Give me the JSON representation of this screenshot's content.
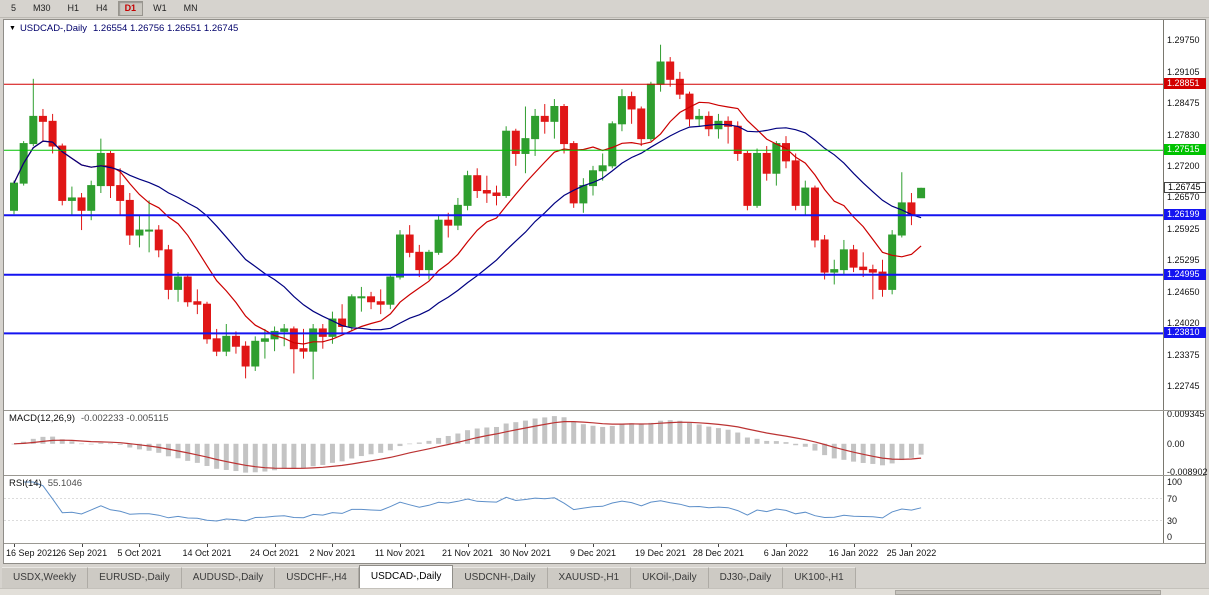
{
  "toolbar": {
    "timeframes": [
      {
        "label": "5",
        "active": false
      },
      {
        "label": "M30",
        "active": false
      },
      {
        "label": "H1",
        "active": false
      },
      {
        "label": "H4",
        "active": false
      },
      {
        "label": "D1",
        "active": true
      },
      {
        "label": "W1",
        "active": false
      },
      {
        "label": "MN",
        "active": false
      }
    ]
  },
  "chart": {
    "menu_icon": "▼",
    "title": "USDCAD-,Daily",
    "ohlc_text": "1.26554 1.26756 1.26551 1.26745"
  },
  "chart_data": {
    "type": "candlestick",
    "symbol": "USDCAD-",
    "timeframe": "Daily",
    "last_ohlc": {
      "open": "1.26554",
      "high": "1.26756",
      "low": "1.26551",
      "close": "1.26745"
    },
    "colors": {
      "bull": "#2f9e2f",
      "bear": "#e01616",
      "ma_fast": "#cc0000",
      "ma_slow": "#000080",
      "macd_hist": "#c4c4c4",
      "macd_signal": "#bb3333",
      "rsi_line": "#5d8fc9"
    },
    "price_axis": {
      "min": 1.2226,
      "max": 1.3015,
      "ticks": [
        "1.29750",
        "1.29105",
        "1.28475",
        "1.27830",
        "1.27200",
        "1.26570",
        "1.25925",
        "1.25295",
        "1.24650",
        "1.24020",
        "1.23375",
        "1.22745"
      ]
    },
    "hlines": [
      {
        "label": "1.28851",
        "price": 1.28851,
        "color": "#d20000",
        "width": 1
      },
      {
        "label": "1.27515",
        "price": 1.27515,
        "color": "#00c200",
        "width": 1
      },
      {
        "label": "1.26199",
        "price": 1.26199,
        "color": "#1414f0",
        "width": 2
      },
      {
        "label": "1.24995",
        "price": 1.24995,
        "color": "#1414f0",
        "width": 2
      },
      {
        "label": "1.23810",
        "price": 1.2381,
        "color": "#1414f0",
        "width": 2
      }
    ],
    "current_price": {
      "label": "1.26745",
      "price": 1.26745
    },
    "moving_averages": [
      {
        "period": 10,
        "color": "#cc0000"
      },
      {
        "period": 20,
        "color": "#000080"
      }
    ],
    "macd": {
      "label": "MACD(12,26,9)",
      "values_text": "-0.002233 -0.005115",
      "fast": 12,
      "slow": 26,
      "signal": 9,
      "axis_ticks": [
        "0.009345",
        "0.00",
        "-0.008902"
      ],
      "range": [
        -0.0099,
        0.0104
      ]
    },
    "rsi": {
      "label": "RSI(14)",
      "value_text": "55.1046",
      "period": 14,
      "levels": [
        70,
        30
      ],
      "axis_ticks": [
        "100",
        "70",
        "30",
        "0"
      ]
    },
    "x_axis": {
      "labels": [
        {
          "text": "16 Sep 2021",
          "bar": 0
        },
        {
          "text": "26 Sep 2021",
          "bar": 7
        },
        {
          "text": "5 Oct 2021",
          "bar": 13
        },
        {
          "text": "14 Oct 2021",
          "bar": 20
        },
        {
          "text": "24 Oct 2021",
          "bar": 27
        },
        {
          "text": "2 Nov 2021",
          "bar": 33
        },
        {
          "text": "11 Nov 2021",
          "bar": 40
        },
        {
          "text": "21 Nov 2021",
          "bar": 47
        },
        {
          "text": "30 Nov 2021",
          "bar": 53
        },
        {
          "text": "9 Dec 2021",
          "bar": 60
        },
        {
          "text": "19 Dec 2021",
          "bar": 67
        },
        {
          "text": "28 Dec 2021",
          "bar": 73
        },
        {
          "text": "6 Jan 2022",
          "bar": 80
        },
        {
          "text": "16 Jan 2022",
          "bar": 87
        },
        {
          "text": "25 Jan 2022",
          "bar": 93
        }
      ]
    },
    "candles": [
      [
        1.263,
        1.269,
        1.2622,
        1.2685
      ],
      [
        1.2685,
        1.277,
        1.268,
        1.2765
      ],
      [
        1.2765,
        1.2896,
        1.276,
        1.282
      ],
      [
        1.282,
        1.2835,
        1.277,
        1.281
      ],
      [
        1.281,
        1.2825,
        1.2745,
        1.276
      ],
      [
        1.276,
        1.2765,
        1.264,
        1.265
      ],
      [
        1.265,
        1.2678,
        1.262,
        1.2655
      ],
      [
        1.2655,
        1.2665,
        1.259,
        1.263
      ],
      [
        1.263,
        1.269,
        1.261,
        1.268
      ],
      [
        1.268,
        1.2775,
        1.2665,
        1.2745
      ],
      [
        1.2745,
        1.275,
        1.2655,
        1.268
      ],
      [
        1.268,
        1.2715,
        1.262,
        1.265
      ],
      [
        1.265,
        1.2665,
        1.256,
        1.258
      ],
      [
        1.258,
        1.262,
        1.2555,
        1.259
      ],
      [
        1.259,
        1.265,
        1.2545,
        1.259
      ],
      [
        1.259,
        1.26,
        1.2535,
        1.255
      ],
      [
        1.255,
        1.256,
        1.245,
        1.247
      ],
      [
        1.247,
        1.2505,
        1.2445,
        1.2495
      ],
      [
        1.2495,
        1.25,
        1.2435,
        1.2445
      ],
      [
        1.2445,
        1.247,
        1.242,
        1.244
      ],
      [
        1.244,
        1.2445,
        1.236,
        1.237
      ],
      [
        1.237,
        1.239,
        1.2335,
        1.2345
      ],
      [
        1.2345,
        1.24,
        1.2335,
        1.2375
      ],
      [
        1.2375,
        1.2385,
        1.234,
        1.2355
      ],
      [
        1.2355,
        1.2365,
        1.229,
        1.2315
      ],
      [
        1.2315,
        1.2375,
        1.2305,
        1.2365
      ],
      [
        1.2365,
        1.239,
        1.233,
        1.237
      ],
      [
        1.237,
        1.2395,
        1.2345,
        1.2385
      ],
      [
        1.2385,
        1.24,
        1.2355,
        1.239
      ],
      [
        1.239,
        1.2395,
        1.23,
        1.235
      ],
      [
        1.235,
        1.239,
        1.233,
        1.2345
      ],
      [
        1.2345,
        1.24,
        1.2288,
        1.239
      ],
      [
        1.239,
        1.24,
        1.235,
        1.2375
      ],
      [
        1.2375,
        1.2425,
        1.236,
        1.241
      ],
      [
        1.241,
        1.244,
        1.238,
        1.2395
      ],
      [
        1.2395,
        1.246,
        1.2385,
        1.2455
      ],
      [
        1.2455,
        1.2475,
        1.2425,
        1.2455
      ],
      [
        1.2455,
        1.2465,
        1.243,
        1.2445
      ],
      [
        1.2445,
        1.247,
        1.242,
        1.244
      ],
      [
        1.244,
        1.25,
        1.243,
        1.2495
      ],
      [
        1.2495,
        1.259,
        1.249,
        1.258
      ],
      [
        1.258,
        1.26,
        1.2535,
        1.2545
      ],
      [
        1.2545,
        1.256,
        1.2495,
        1.251
      ],
      [
        1.251,
        1.255,
        1.249,
        1.2545
      ],
      [
        1.2545,
        1.262,
        1.254,
        1.261
      ],
      [
        1.261,
        1.2625,
        1.2575,
        1.26
      ],
      [
        1.26,
        1.2655,
        1.259,
        1.264
      ],
      [
        1.264,
        1.271,
        1.263,
        1.27
      ],
      [
        1.27,
        1.2715,
        1.2655,
        1.267
      ],
      [
        1.267,
        1.27,
        1.2645,
        1.2665
      ],
      [
        1.2665,
        1.268,
        1.264,
        1.266
      ],
      [
        1.266,
        1.28,
        1.2655,
        1.279
      ],
      [
        1.279,
        1.2795,
        1.272,
        1.2745
      ],
      [
        1.2745,
        1.284,
        1.2705,
        1.2775
      ],
      [
        1.2775,
        1.2835,
        1.274,
        1.282
      ],
      [
        1.282,
        1.2845,
        1.2785,
        1.281
      ],
      [
        1.281,
        1.2855,
        1.2775,
        1.284
      ],
      [
        1.284,
        1.2845,
        1.2745,
        1.2765
      ],
      [
        1.2765,
        1.277,
        1.2635,
        1.2645
      ],
      [
        1.2645,
        1.2695,
        1.2625,
        1.268
      ],
      [
        1.268,
        1.272,
        1.266,
        1.271
      ],
      [
        1.271,
        1.2745,
        1.269,
        1.272
      ],
      [
        1.272,
        1.281,
        1.2715,
        1.2805
      ],
      [
        1.2805,
        1.2875,
        1.279,
        1.286
      ],
      [
        1.286,
        1.287,
        1.2805,
        1.2835
      ],
      [
        1.2835,
        1.284,
        1.276,
        1.2775
      ],
      [
        1.2775,
        1.289,
        1.277,
        1.2885
      ],
      [
        1.2885,
        1.2965,
        1.287,
        1.293
      ],
      [
        1.293,
        1.294,
        1.288,
        1.2895
      ],
      [
        1.2895,
        1.291,
        1.2855,
        1.2865
      ],
      [
        1.2865,
        1.287,
        1.28,
        1.2815
      ],
      [
        1.2815,
        1.2835,
        1.28,
        1.282
      ],
      [
        1.282,
        1.283,
        1.278,
        1.2795
      ],
      [
        1.2795,
        1.2825,
        1.2775,
        1.281
      ],
      [
        1.281,
        1.282,
        1.2765,
        1.28
      ],
      [
        1.28,
        1.281,
        1.273,
        1.2745
      ],
      [
        1.2745,
        1.275,
        1.263,
        1.264
      ],
      [
        1.264,
        1.2755,
        1.2635,
        1.2745
      ],
      [
        1.2745,
        1.276,
        1.269,
        1.2705
      ],
      [
        1.2705,
        1.277,
        1.268,
        1.2765
      ],
      [
        1.2765,
        1.278,
        1.2715,
        1.273
      ],
      [
        1.273,
        1.2745,
        1.263,
        1.264
      ],
      [
        1.264,
        1.269,
        1.262,
        1.2675
      ],
      [
        1.2675,
        1.268,
        1.2555,
        1.257
      ],
      [
        1.257,
        1.258,
        1.249,
        1.2505
      ],
      [
        1.2505,
        1.253,
        1.248,
        1.251
      ],
      [
        1.251,
        1.257,
        1.25,
        1.255
      ],
      [
        1.255,
        1.256,
        1.2505,
        1.2515
      ],
      [
        1.2515,
        1.2545,
        1.2495,
        1.251
      ],
      [
        1.251,
        1.252,
        1.245,
        1.2505
      ],
      [
        1.2505,
        1.253,
        1.2455,
        1.247
      ],
      [
        1.247,
        1.259,
        1.246,
        1.258
      ],
      [
        1.258,
        1.2707,
        1.2575,
        1.2645
      ],
      [
        1.2645,
        1.2665,
        1.26,
        1.262
      ],
      [
        1.26554,
        1.26756,
        1.26551,
        1.26745
      ]
    ]
  },
  "tabs": {
    "items": [
      {
        "label": "USDX,Weekly",
        "active": false
      },
      {
        "label": "EURUSD-,Daily",
        "active": false
      },
      {
        "label": "AUDUSD-,Daily",
        "active": false
      },
      {
        "label": "USDCHF-,H4",
        "active": false
      },
      {
        "label": "USDCAD-,Daily",
        "active": true
      },
      {
        "label": "USDCNH-,Daily",
        "active": false
      },
      {
        "label": "XAUUSD-,H1",
        "active": false
      },
      {
        "label": "UKOil-,Daily",
        "active": false
      },
      {
        "label": "DJ30-,Daily",
        "active": false
      },
      {
        "label": "UK100-,H1",
        "active": false
      }
    ]
  }
}
